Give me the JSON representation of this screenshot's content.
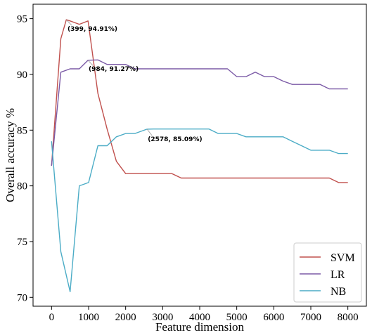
{
  "chart_data": {
    "type": "line",
    "xlabel": "Feature dimension",
    "ylabel": "Overall accuracy %",
    "xlim": [
      -500,
      8500
    ],
    "ylim": [
      69.2,
      96.3
    ],
    "xticks": [
      0,
      1000,
      2000,
      3000,
      4000,
      5000,
      6000,
      7000,
      8000
    ],
    "yticks": [
      70,
      75,
      80,
      85,
      90,
      95
    ],
    "grid": false,
    "legend_position": "bottom-right",
    "series": [
      {
        "name": "SVM",
        "color": "#c0504d",
        "x": [
          0,
          250,
          399,
          500,
          750,
          984,
          1250,
          1500,
          1750,
          2000,
          2250,
          2500,
          2750,
          3000,
          3250,
          3500,
          3750,
          4000,
          4250,
          4500,
          4750,
          5000,
          5250,
          5500,
          5750,
          6000,
          6250,
          6500,
          6750,
          7000,
          7250,
          7500,
          7750,
          8000
        ],
        "y": [
          81.8,
          93.2,
          94.91,
          94.8,
          94.5,
          94.8,
          88.3,
          85.1,
          82.2,
          81.1,
          81.1,
          81.1,
          81.1,
          81.1,
          81.1,
          80.7,
          80.7,
          80.7,
          80.7,
          80.7,
          80.7,
          80.7,
          80.7,
          80.7,
          80.7,
          80.7,
          80.7,
          80.7,
          80.7,
          80.7,
          80.7,
          80.7,
          80.3,
          80.3
        ]
      },
      {
        "name": "LR",
        "color": "#7b5aa6",
        "x": [
          0,
          250,
          500,
          750,
          984,
          1250,
          1500,
          1750,
          2000,
          2250,
          2500,
          2750,
          3000,
          3250,
          3500,
          3750,
          4000,
          4250,
          4500,
          4750,
          5000,
          5250,
          5500,
          5750,
          6000,
          6250,
          6500,
          6750,
          7000,
          7250,
          7500,
          7750,
          8000
        ],
        "y": [
          81.8,
          90.2,
          90.5,
          90.5,
          91.27,
          91.3,
          90.9,
          90.9,
          90.9,
          90.5,
          90.5,
          90.5,
          90.5,
          90.5,
          90.5,
          90.5,
          90.5,
          90.5,
          90.5,
          90.5,
          89.8,
          89.8,
          90.2,
          89.8,
          89.8,
          89.4,
          89.1,
          89.1,
          89.1,
          89.1,
          88.7,
          88.7,
          88.7
        ]
      },
      {
        "name": "NB",
        "color": "#4bacc6",
        "x": [
          0,
          250,
          500,
          750,
          1000,
          1250,
          1500,
          1750,
          2000,
          2250,
          2578,
          2750,
          3000,
          3250,
          3500,
          3750,
          4000,
          4250,
          4500,
          4750,
          5000,
          5250,
          5500,
          5750,
          6000,
          6250,
          6500,
          6750,
          7000,
          7250,
          7500,
          7750,
          8000
        ],
        "y": [
          84.0,
          74.1,
          70.5,
          80.0,
          80.3,
          83.6,
          83.6,
          84.4,
          84.7,
          84.7,
          85.09,
          85.1,
          85.1,
          85.1,
          85.1,
          85.1,
          85.1,
          85.1,
          84.7,
          84.7,
          84.7,
          84.4,
          84.4,
          84.4,
          84.4,
          84.4,
          84.0,
          83.6,
          83.2,
          83.2,
          83.2,
          82.9,
          82.9
        ]
      }
    ],
    "annotations": [
      {
        "text": "(399, 94.91%)",
        "x": 399,
        "y": 94.91,
        "text_x": 430,
        "text_y": 93.9
      },
      {
        "text": "(984, 91.27%)",
        "x": 984,
        "y": 91.27,
        "text_x": 1000,
        "text_y": 90.3
      },
      {
        "text": "(2578, 85.09%)",
        "x": 2578,
        "y": 85.09,
        "text_x": 2600,
        "text_y": 84.0
      }
    ]
  }
}
